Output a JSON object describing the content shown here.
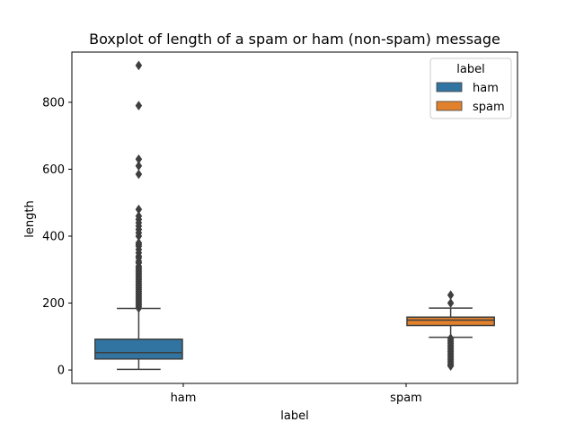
{
  "chart_data": {
    "type": "boxplot",
    "title": "Boxplot of length of a spam or ham (non-spam) message",
    "xlabel": "label",
    "ylabel": "length",
    "categories": [
      "ham",
      "spam"
    ],
    "ylim": [
      -40,
      950
    ],
    "yticks": [
      0,
      200,
      400,
      600,
      800
    ],
    "grid": false,
    "legend": {
      "title": "label",
      "position": "top-right",
      "entries": [
        "ham",
        "spam"
      ]
    },
    "colors": {
      "ham": "#3274a1",
      "spam": "#e1812c",
      "lines": "#3f3f3f"
    },
    "series": [
      {
        "name": "ham",
        "category": "ham",
        "min": 2,
        "q1": 33,
        "median": 52,
        "q3": 92,
        "whisker_high": 184,
        "outliers": [
          185,
          190,
          195,
          200,
          205,
          210,
          215,
          220,
          225,
          230,
          235,
          240,
          245,
          250,
          255,
          260,
          265,
          270,
          275,
          280,
          285,
          290,
          295,
          300,
          305,
          310,
          320,
          325,
          335,
          340,
          350,
          360,
          370,
          375,
          380,
          400,
          410,
          420,
          430,
          440,
          450,
          460,
          480,
          585,
          610,
          630,
          790,
          910
        ]
      },
      {
        "name": "spam",
        "category": "spam",
        "min": 98,
        "q1": 133,
        "median": 149,
        "q3": 158,
        "whisker_high": 185,
        "outliers": [
          200,
          224,
          95,
          90,
          85,
          80,
          75,
          70,
          65,
          60,
          55,
          50,
          45,
          40,
          35,
          30,
          25,
          20,
          15,
          12
        ]
      }
    ]
  }
}
